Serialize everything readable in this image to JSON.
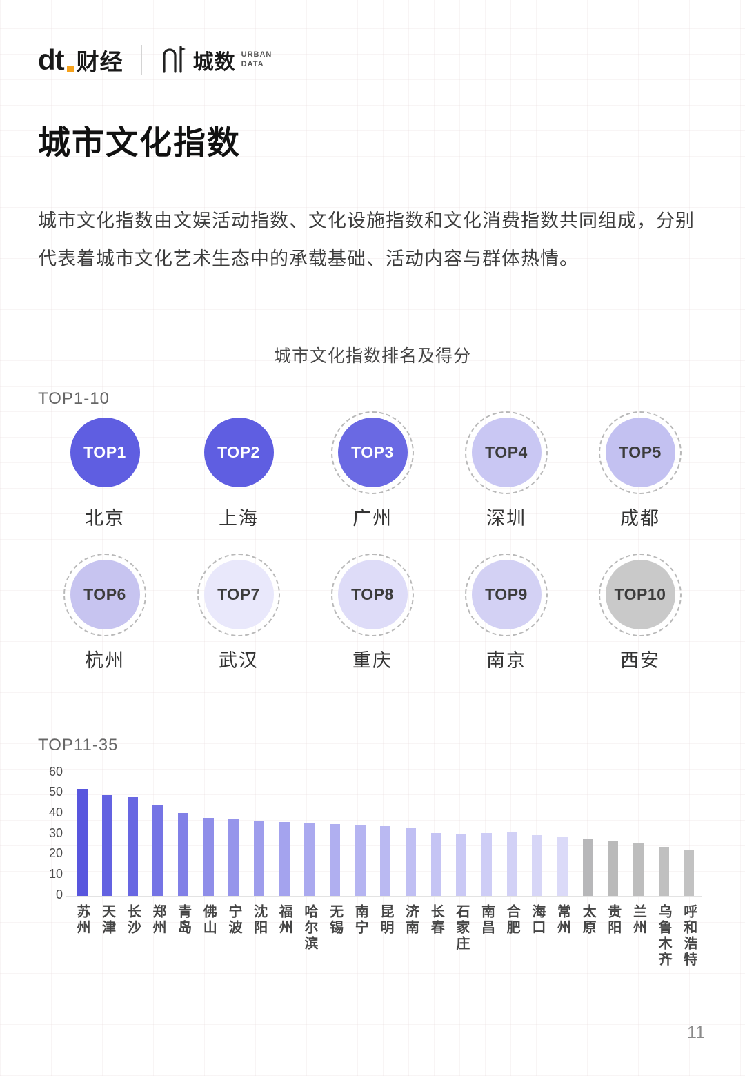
{
  "page": {
    "number": "11"
  },
  "header": {
    "brand_left_mark": "dt",
    "brand_left": "财经",
    "brand_right": "城数",
    "brand_right_sub1": "URBAN",
    "brand_right_sub2": "DATA"
  },
  "title": "城市文化指数",
  "intro": "城市文化指数由文娱活动指数、文化设施指数和文化消费指数共同组成，分别代表着城市文化艺术生态中的承载基础、活动内容与群体热情。",
  "chart_title": "城市文化指数排名及得分",
  "top10": {
    "label": "TOP1-10",
    "items": [
      {
        "rank": "TOP1",
        "city": "北京",
        "fill": "#5f5ee1",
        "text_color": "#ffffff",
        "ring": false
      },
      {
        "rank": "TOP2",
        "city": "上海",
        "fill": "#5f5ee1",
        "text_color": "#ffffff",
        "ring": false
      },
      {
        "rank": "TOP3",
        "city": "广州",
        "fill": "#6a69e3",
        "text_color": "#ffffff",
        "ring": true
      },
      {
        "rank": "TOP4",
        "city": "深圳",
        "fill": "#c9c7f3",
        "text_color": "#3c3c3c",
        "ring": true
      },
      {
        "rank": "TOP5",
        "city": "成都",
        "fill": "#c3c1f1",
        "text_color": "#3c3c3c",
        "ring": true
      },
      {
        "rank": "TOP6",
        "city": "杭州",
        "fill": "#c7c4f0",
        "text_color": "#3c3c3c",
        "ring": true
      },
      {
        "rank": "TOP7",
        "city": "武汉",
        "fill": "#e9e8fb",
        "text_color": "#3c3c3c",
        "ring": true
      },
      {
        "rank": "TOP8",
        "city": "重庆",
        "fill": "#dedcf8",
        "text_color": "#3c3c3c",
        "ring": true
      },
      {
        "rank": "TOP9",
        "city": "南京",
        "fill": "#d3d1f4",
        "text_color": "#3c3c3c",
        "ring": true
      },
      {
        "rank": "TOP10",
        "city": "西安",
        "fill": "#c9c9c9",
        "text_color": "#3c3c3c",
        "ring": true
      }
    ]
  },
  "bar_section_label": "TOP11-35",
  "chart_data": {
    "type": "bar",
    "title": "城市文化指数排名及得分 (TOP11-35)",
    "categories": [
      "苏州",
      "天津",
      "长沙",
      "郑州",
      "青岛",
      "佛山",
      "宁波",
      "沈阳",
      "福州",
      "哈尔滨",
      "无锡",
      "南宁",
      "昆明",
      "济南",
      "长春",
      "石家庄",
      "南昌",
      "合肥",
      "海口",
      "常州",
      "太原",
      "贵阳",
      "兰州",
      "乌鲁木齐",
      "呼和浩特"
    ],
    "values": [
      52,
      49,
      48,
      44,
      40.5,
      38,
      37.5,
      36.5,
      36,
      35.5,
      35,
      34.5,
      34,
      33,
      30.5,
      30,
      30.5,
      31,
      29.5,
      29,
      27.5,
      26.5,
      25.5,
      24,
      22.5
    ],
    "bar_colors": [
      "#5856de",
      "#6362e1",
      "#6867e2",
      "#7574e5",
      "#8180e7",
      "#8f8ee9",
      "#9695eb",
      "#9e9dec",
      "#a4a3ee",
      "#aaa9ef",
      "#b0aff0",
      "#b5b4f1",
      "#bab9f2",
      "#c0bff3",
      "#c5c4f4",
      "#cac9f5",
      "#cecdf6",
      "#d2d1f6",
      "#d7d6f7",
      "#dbdaf8",
      "#b7b7b9",
      "#bababa",
      "#bdbdbd",
      "#c0c0c0",
      "#c2c2c2"
    ],
    "xlabel": "",
    "ylabel": "",
    "ylim": [
      0,
      60
    ],
    "yticks": [
      0,
      10,
      20,
      30,
      40,
      50,
      60
    ],
    "grid": false,
    "legend": "none"
  }
}
